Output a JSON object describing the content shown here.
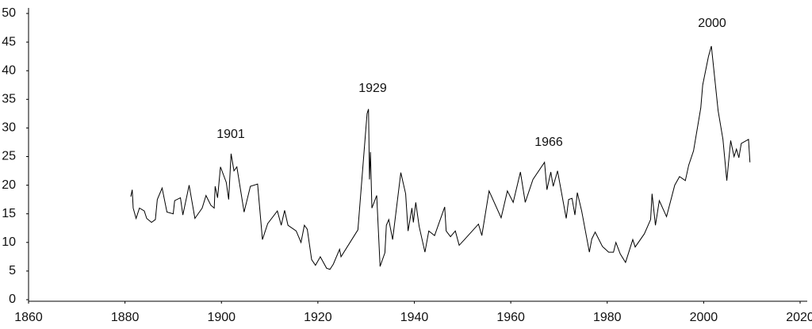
{
  "chart_data": {
    "type": "line",
    "annotations": [
      "1901",
      "1929",
      "1966",
      "2000"
    ],
    "x": [
      1881.2,
      1881.5,
      1881.7,
      1882.3,
      1883,
      1884,
      1884.5,
      1885.5,
      1886.3,
      1886.7,
      1887.7,
      1888.7,
      1890,
      1890.3,
      1891.5,
      1892,
      1893.3,
      1894.5,
      1896,
      1896.8,
      1897.8,
      1898.5,
      1898.7,
      1899.2,
      1899.8,
      1901,
      1901.5,
      1902,
      1902.6,
      1903.2,
      1904.7,
      1906,
      1907.5,
      1908.5,
      1909.6,
      1911.6,
      1912.4,
      1913.1,
      1913.8,
      1915.5,
      1916.5,
      1917.2,
      1917.8,
      1918.7,
      1919.5,
      1920.5,
      1921.8,
      1922.5,
      1923.2,
      1924.5,
      1924.8,
      1928.3,
      1930.2,
      1930.5,
      1930.7,
      1930.9,
      1931.2,
      1932.2,
      1932.9,
      1933.9,
      1934.2,
      1934.7,
      1935.5,
      1937.2,
      1938.2,
      1938.7,
      1939.5,
      1939.8,
      1940.3,
      1941,
      1942.2,
      1943,
      1944.2,
      1946.3,
      1946.6,
      1947.5,
      1948.5,
      1949.3,
      1950.4,
      1953.3,
      1954,
      1955.5,
      1958,
      1959.3,
      1960.5,
      1962,
      1963,
      1964.6,
      1967,
      1967.5,
      1968.3,
      1968.8,
      1969.7,
      1971.5,
      1972,
      1972.7,
      1973.3,
      1973.8,
      1974.7,
      1976.3,
      1976.8,
      1977.5,
      1979,
      1980.3,
      1981.3,
      1981.8,
      1982.7,
      1983.8,
      1985.3,
      1985.8,
      1987.7,
      1989,
      1989.3,
      1990,
      1990.8,
      1992.3,
      1994,
      1995,
      1996.2,
      1996.9,
      1997.9,
      1999.4,
      1999.8,
      2001,
      2001.6,
      2003,
      2004,
      2004.8,
      2005.6,
      2006.3,
      2006.8,
      2007.3,
      2007.8,
      2009.3,
      2009.6
    ],
    "series": [
      {
        "color": "#000000",
        "values": [
          18,
          19.2,
          16,
          14.2,
          16,
          15.5,
          14.2,
          13.5,
          14,
          17.5,
          19.5,
          15.3,
          15,
          17.3,
          17.8,
          14.8,
          20,
          14.2,
          16,
          18.2,
          16.5,
          16,
          19.8,
          17.8,
          23.2,
          20.5,
          17.5,
          25.5,
          22.5,
          23.2,
          15.3,
          19.8,
          20.2,
          10.5,
          13.3,
          15.5,
          13,
          15.6,
          13,
          12,
          10,
          13,
          12.3,
          7,
          6,
          7.5,
          5.5,
          5.3,
          6.2,
          8.8,
          7.5,
          12.2,
          32.5,
          33.3,
          21,
          25.8,
          16,
          18.2,
          5.8,
          8.2,
          13,
          14,
          10.5,
          22.2,
          18.5,
          12,
          16,
          13.5,
          17,
          12.8,
          8.3,
          12,
          11.2,
          16.2,
          12,
          11,
          12,
          9.5,
          10.5,
          13.2,
          11.2,
          19,
          14.3,
          19,
          17,
          22.3,
          17,
          21,
          24,
          19.2,
          22.3,
          19.8,
          22.5,
          14.2,
          17.5,
          17.7,
          14.8,
          18.7,
          15.5,
          8.3,
          10.6,
          11.8,
          9.3,
          8.3,
          8.3,
          10,
          8,
          6.5,
          10.5,
          9.2,
          11.5,
          14,
          18.5,
          13,
          17.3,
          14.5,
          20,
          21.5,
          20.8,
          23.5,
          26,
          33.5,
          37.5,
          42.5,
          44.3,
          33,
          28,
          20.8,
          27.8,
          25,
          26.3,
          24.8,
          27.3,
          28,
          24
        ]
      }
    ],
    "xlim": [
      1860,
      2020
    ],
    "xticks": [
      1860,
      1880,
      1900,
      1920,
      1940,
      1960,
      1980,
      2000,
      2020
    ],
    "ylim": [
      0,
      50
    ],
    "yticks": [
      0,
      5,
      10,
      15,
      20,
      25,
      30,
      35,
      40,
      45,
      50
    ]
  }
}
